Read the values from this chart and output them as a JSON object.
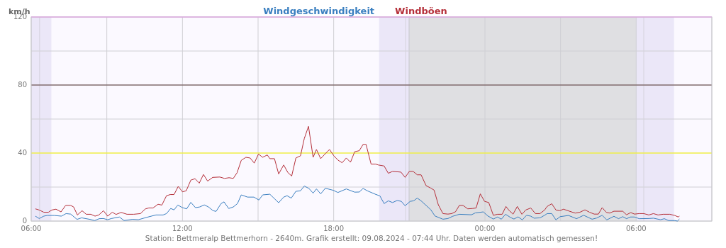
{
  "chart_data": {
    "type": "line",
    "ylabel": "km/h",
    "legend": "top",
    "grid": true,
    "marker": "none",
    "line_style": "solid",
    "xlim": [
      "2024-08-08T06:00",
      "2024-08-09T09:00"
    ],
    "xticks": [
      {
        "value": "2024-08-08T06:00",
        "label": "06:00"
      },
      {
        "value": "2024-08-08T09:00",
        "label": null
      },
      {
        "value": "2024-08-08T12:00",
        "label": "12:00"
      },
      {
        "value": "2024-08-08T15:00",
        "label": null
      },
      {
        "value": "2024-08-08T18:00",
        "label": "18:00"
      },
      {
        "value": "2024-08-08T21:00",
        "label": null
      },
      {
        "value": "2024-08-09T00:00",
        "label": "00:00"
      },
      {
        "value": "2024-08-09T03:00",
        "label": null
      },
      {
        "value": "2024-08-09T06:00",
        "label": "06:00"
      },
      {
        "value": "2024-08-09T09:00",
        "label": null
      }
    ],
    "ylim": [
      0,
      120
    ],
    "yticks": [
      0,
      {
        "value": 20,
        "label": null
      },
      40,
      {
        "value": 60,
        "label": null
      },
      80,
      {
        "value": 100,
        "label": null
      },
      120
    ],
    "bands": [
      {
        "axis": "x",
        "from": "2024-08-08T06:00",
        "to": "2024-08-08T06:48",
        "color": "#ebe7f8"
      },
      {
        "axis": "x",
        "from": "2024-08-08T19:48",
        "to": "2024-08-08T21:00",
        "color": "#ebe7f8"
      },
      {
        "axis": "x",
        "from": "2024-08-08T21:00",
        "to": "2024-08-09T06:00",
        "color": "#dfdfe2"
      },
      {
        "axis": "x",
        "from": "2024-08-09T06:00",
        "to": "2024-08-09T07:30",
        "color": "#ebe7f8"
      }
    ],
    "ref_lines": [
      {
        "axis": "x",
        "value": "2024-08-08T06:20",
        "color": "#d4d2dc"
      },
      {
        "axis": "x",
        "value": "2024-08-08T20:51",
        "color": "#d4d2dc"
      },
      {
        "axis": "x",
        "value": "2024-08-08T20:59",
        "color": "#d4d2dc"
      },
      {
        "axis": "x",
        "value": "2024-08-09T06:18",
        "color": "#d4d2dc"
      },
      {
        "axis": "y",
        "value": 40,
        "color": "#ffff00"
      },
      {
        "axis": "y",
        "value": 80,
        "color": "#5a3a3a"
      },
      {
        "axis": "y",
        "value": 120,
        "color": "#ff66ff"
      }
    ],
    "series": [
      {
        "name": "Windgeschwindigkeit",
        "color": "#3a7fc0",
        "x": [
          "2024-08-08T06:10",
          "2024-08-08T06:19",
          "2024-08-08T06:30",
          "2024-08-08T06:38",
          "2024-08-08T06:55",
          "2024-08-08T07:12",
          "2024-08-08T07:23",
          "2024-08-08T07:34",
          "2024-08-08T07:49",
          "2024-08-08T08:00",
          "2024-08-08T08:20",
          "2024-08-08T08:31",
          "2024-08-08T08:42",
          "2024-08-08T08:52",
          "2024-08-08T09:02",
          "2024-08-08T09:11",
          "2024-08-08T09:30",
          "2024-08-08T09:41",
          "2024-08-08T10:01",
          "2024-08-08T10:15",
          "2024-08-08T10:35",
          "2024-08-08T10:57",
          "2024-08-08T11:14",
          "2024-08-08T11:22",
          "2024-08-08T11:32",
          "2024-08-08T11:40",
          "2024-08-08T11:49",
          "2024-08-08T12:00",
          "2024-08-08T12:10",
          "2024-08-08T12:20",
          "2024-08-08T12:31",
          "2024-08-08T12:41",
          "2024-08-08T12:52",
          "2024-08-08T13:02",
          "2024-08-08T13:13",
          "2024-08-08T13:20",
          "2024-08-08T13:32",
          "2024-08-08T13:39",
          "2024-08-08T13:50",
          "2024-08-08T14:01",
          "2024-08-08T14:11",
          "2024-08-08T14:20",
          "2024-08-08T14:35",
          "2024-08-08T14:50",
          "2024-08-08T15:02",
          "2024-08-08T15:11",
          "2024-08-08T15:28",
          "2024-08-08T15:49",
          "2024-08-08T16:01",
          "2024-08-08T16:09",
          "2024-08-08T16:19",
          "2024-08-08T16:30",
          "2024-08-08T16:41",
          "2024-08-08T16:50",
          "2024-08-08T17:01",
          "2024-08-08T17:11",
          "2024-08-08T17:19",
          "2024-08-08T17:29",
          "2024-08-08T17:40",
          "2024-08-08T17:59",
          "2024-08-08T18:10",
          "2024-08-08T18:30",
          "2024-08-08T18:50",
          "2024-08-08T19:01",
          "2024-08-08T19:10",
          "2024-08-08T19:20",
          "2024-08-08T19:40",
          "2024-08-08T19:50",
          "2024-08-08T20:00",
          "2024-08-08T20:10",
          "2024-08-08T20:20",
          "2024-08-08T20:31",
          "2024-08-08T20:41",
          "2024-08-08T20:50",
          "2024-08-08T21:02",
          "2024-08-08T21:10",
          "2024-08-08T21:19",
          "2024-08-08T21:28",
          "2024-08-08T21:51",
          "2024-08-08T22:01",
          "2024-08-08T22:20",
          "2024-08-08T22:32",
          "2024-08-08T22:43",
          "2024-08-08T22:59",
          "2024-08-08T23:28",
          "2024-08-08T23:37",
          "2024-08-08T23:56",
          "2024-08-09T00:07",
          "2024-08-09T00:20",
          "2024-08-09T00:30",
          "2024-08-09T00:39",
          "2024-08-09T00:49",
          "2024-08-09T01:01",
          "2024-08-09T01:09",
          "2024-08-09T01:19",
          "2024-08-09T01:29",
          "2024-08-09T01:39",
          "2024-08-09T01:49",
          "2024-08-09T01:57",
          "2024-08-09T02:11",
          "2024-08-09T02:22",
          "2024-08-09T02:28",
          "2024-08-09T02:39",
          "2024-08-09T02:49",
          "2024-08-09T02:59",
          "2024-08-09T03:19",
          "2024-08-09T03:38",
          "2024-08-09T03:55",
          "2024-08-09T04:15",
          "2024-08-09T04:26",
          "2024-08-09T04:39",
          "2024-08-09T04:50",
          "2024-08-09T05:07",
          "2024-08-09T05:18",
          "2024-08-09T05:28",
          "2024-08-09T05:37",
          "2024-08-09T05:46",
          "2024-08-09T05:56",
          "2024-08-09T06:07",
          "2024-08-09T06:30",
          "2024-08-09T06:41",
          "2024-08-09T06:58",
          "2024-08-09T07:07",
          "2024-08-09T07:17",
          "2024-08-09T07:32",
          "2024-08-09T07:38",
          "2024-08-09T07:43"
        ],
        "values": [
          2.9,
          1.5,
          2.9,
          3.3,
          3.3,
          2.9,
          4.4,
          4.1,
          1.0,
          1.9,
          1.0,
          0.3,
          1.4,
          1.5,
          0.8,
          1.5,
          2.4,
          0.3,
          1.0,
          0.8,
          2.2,
          3.6,
          3.6,
          4.4,
          7.4,
          6.6,
          9.4,
          7.9,
          7.2,
          11.0,
          7.9,
          8.3,
          9.5,
          8.3,
          6.1,
          5.7,
          10.3,
          11.3,
          7.4,
          8.3,
          10.3,
          15.4,
          14.1,
          14.1,
          12.4,
          15.4,
          15.8,
          10.8,
          14.1,
          14.9,
          13.5,
          17.5,
          17.8,
          20.6,
          19.2,
          16.4,
          18.9,
          16.0,
          19.3,
          18.1,
          16.8,
          18.9,
          17.0,
          17.1,
          19.2,
          17.8,
          15.7,
          14.8,
          10.3,
          11.9,
          10.9,
          12.1,
          11.6,
          9.0,
          11.6,
          11.9,
          13.5,
          11.9,
          6.7,
          3.0,
          1.1,
          1.5,
          2.8,
          4.0,
          3.7,
          4.8,
          5.4,
          3.0,
          1.2,
          2.4,
          1.1,
          4.0,
          2.1,
          1.2,
          2.5,
          0.7,
          3.4,
          2.9,
          1.7,
          1.9,
          3.4,
          4.4,
          4.4,
          0.7,
          2.6,
          3.3,
          1.4,
          3.4,
          1.1,
          1.8,
          3.4,
          0.7,
          2.8,
          1.4,
          2.6,
          1.4,
          2.4,
          2.4,
          1.4,
          1.5,
          1.7,
          0.8,
          1.4,
          0.3,
          0.3,
          0,
          1.2
        ]
      },
      {
        "name": "Windböen",
        "color": "#b5303a",
        "x": [
          "2024-08-08T06:10",
          "2024-08-08T06:19",
          "2024-08-08T06:30",
          "2024-08-08T06:41",
          "2024-08-08T06:49",
          "2024-08-08T06:59",
          "2024-08-08T07:11",
          "2024-08-08T07:22",
          "2024-08-08T07:34",
          "2024-08-08T07:41",
          "2024-08-08T07:50",
          "2024-08-08T08:01",
          "2024-08-08T08:11",
          "2024-08-08T08:22",
          "2024-08-08T08:32",
          "2024-08-08T08:41",
          "2024-08-08T08:52",
          "2024-08-08T09:02",
          "2024-08-08T09:13",
          "2024-08-08T09:22",
          "2024-08-08T09:34",
          "2024-08-08T09:48",
          "2024-08-08T10:04",
          "2024-08-08T10:20",
          "2024-08-08T10:32",
          "2024-08-08T10:40",
          "2024-08-08T10:50",
          "2024-08-08T11:02",
          "2024-08-08T11:11",
          "2024-08-08T11:22",
          "2024-08-08T11:31",
          "2024-08-08T11:40",
          "2024-08-08T11:50",
          "2024-08-08T12:00",
          "2024-08-08T12:09",
          "2024-08-08T12:20",
          "2024-08-08T12:30",
          "2024-08-08T12:40",
          "2024-08-08T12:50",
          "2024-08-08T13:00",
          "2024-08-08T13:12",
          "2024-08-08T13:29",
          "2024-08-08T13:40",
          "2024-08-08T13:51",
          "2024-08-08T14:01",
          "2024-08-08T14:10",
          "2024-08-08T14:20",
          "2024-08-08T14:31",
          "2024-08-08T14:41",
          "2024-08-08T14:51",
          "2024-08-08T15:01",
          "2024-08-08T15:11",
          "2024-08-08T15:22",
          "2024-08-08T15:28",
          "2024-08-08T15:39",
          "2024-08-08T15:49",
          "2024-08-08T16:01",
          "2024-08-08T16:11",
          "2024-08-08T16:20",
          "2024-08-08T16:30",
          "2024-08-08T16:41",
          "2024-08-08T16:50",
          "2024-08-08T17:00",
          "2024-08-08T17:11",
          "2024-08-08T17:19",
          "2024-08-08T17:29",
          "2024-08-08T17:40",
          "2024-08-08T17:50",
          "2024-08-08T18:00",
          "2024-08-08T18:10",
          "2024-08-08T18:20",
          "2024-08-08T18:30",
          "2024-08-08T18:40",
          "2024-08-08T18:50",
          "2024-08-08T19:01",
          "2024-08-08T19:10",
          "2024-08-08T19:17",
          "2024-08-08T19:29",
          "2024-08-08T19:40",
          "2024-08-08T19:46",
          "2024-08-08T20:00",
          "2024-08-08T20:10",
          "2024-08-08T20:20",
          "2024-08-08T20:40",
          "2024-08-08T20:50",
          "2024-08-08T21:00",
          "2024-08-08T21:09",
          "2024-08-08T21:19",
          "2024-08-08T21:28",
          "2024-08-08T21:40",
          "2024-08-08T21:51",
          "2024-08-08T21:59",
          "2024-08-08T22:09",
          "2024-08-08T22:20",
          "2024-08-08T22:32",
          "2024-08-08T22:41",
          "2024-08-08T22:50",
          "2024-08-08T22:59",
          "2024-08-08T23:08",
          "2024-08-08T23:19",
          "2024-08-08T23:30",
          "2024-08-08T23:39",
          "2024-08-08T23:49",
          "2024-08-08T23:59",
          "2024-08-09T00:09",
          "2024-08-09T00:20",
          "2024-08-09T00:30",
          "2024-08-09T00:41",
          "2024-08-09T00:50",
          "2024-08-09T00:58",
          "2024-08-09T01:07",
          "2024-08-09T01:17",
          "2024-08-09T01:28",
          "2024-08-09T01:37",
          "2024-08-09T01:49",
          "2024-08-09T02:00",
          "2024-08-09T02:11",
          "2024-08-09T02:22",
          "2024-08-09T02:28",
          "2024-08-09T02:39",
          "2024-08-09T02:49",
          "2024-08-09T02:58",
          "2024-08-09T03:07",
          "2024-08-09T03:21",
          "2024-08-09T03:35",
          "2024-08-09T03:46",
          "2024-08-09T03:58",
          "2024-08-09T04:09",
          "2024-08-09T04:20",
          "2024-08-09T04:30",
          "2024-08-09T04:39",
          "2024-08-09T04:49",
          "2024-08-09T04:57",
          "2024-08-09T05:07",
          "2024-08-09T05:28",
          "2024-08-09T05:37",
          "2024-08-09T05:47",
          "2024-08-09T05:56",
          "2024-08-09T06:07",
          "2024-08-09T06:18",
          "2024-08-09T06:30",
          "2024-08-09T06:41",
          "2024-08-09T06:52",
          "2024-08-09T07:04",
          "2024-08-09T07:20",
          "2024-08-09T07:32",
          "2024-08-09T07:40",
          "2024-08-09T07:43"
        ],
        "values": [
          7.2,
          6.5,
          5.2,
          5.2,
          6.5,
          7.0,
          5.4,
          9.2,
          9.2,
          8.3,
          3.6,
          6.1,
          4.0,
          4.0,
          2.9,
          3.6,
          6.1,
          2.9,
          5.2,
          3.9,
          5.1,
          4.0,
          4.0,
          4.4,
          7.2,
          7.7,
          7.7,
          9.9,
          9.4,
          14.9,
          15.6,
          15.6,
          20.4,
          17.2,
          17.8,
          24.1,
          24.9,
          22.3,
          27.4,
          23.5,
          25.7,
          25.9,
          25.1,
          25.5,
          25.1,
          28.4,
          35.7,
          37.5,
          37.1,
          34.1,
          39.4,
          37.5,
          38.9,
          36.7,
          36.7,
          27.7,
          33.0,
          28.5,
          26.5,
          37.1,
          38.4,
          48.5,
          55.7,
          37.5,
          42.1,
          36.7,
          39.6,
          42.1,
          38.5,
          35.9,
          34.3,
          37.1,
          34.6,
          40.8,
          41.4,
          45.1,
          45.1,
          33.5,
          33.5,
          33.0,
          32.4,
          28.1,
          29.2,
          28.8,
          25.7,
          29.2,
          29.2,
          27.2,
          27.2,
          20.8,
          19.4,
          18.2,
          9.6,
          4.4,
          4.1,
          4.4,
          5.5,
          9.2,
          9.2,
          7.2,
          7.4,
          7.7,
          16.0,
          11.6,
          10.9,
          3.4,
          4.0,
          4.0,
          8.6,
          6.1,
          4.1,
          8.6,
          4.0,
          6.5,
          7.7,
          4.4,
          4.4,
          6.5,
          8.6,
          10.2,
          6.5,
          6.1,
          7.0,
          5.8,
          4.7,
          5.2,
          6.6,
          5.2,
          4.1,
          4.1,
          7.9,
          5.1,
          4.7,
          5.8,
          5.8,
          3.7,
          5.0,
          4.1,
          4.4,
          4.4,
          3.6,
          4.4,
          3.6,
          4.0,
          4.0,
          3.3,
          2.4,
          2.9
        ]
      }
    ],
    "annotations": [
      "Station: Bettmeralp Bettmerhorn - 2640m. Grafik erstellt: 09.08.2024 - 07:44 Uhr. Daten werden automatisch gemessen!"
    ]
  }
}
